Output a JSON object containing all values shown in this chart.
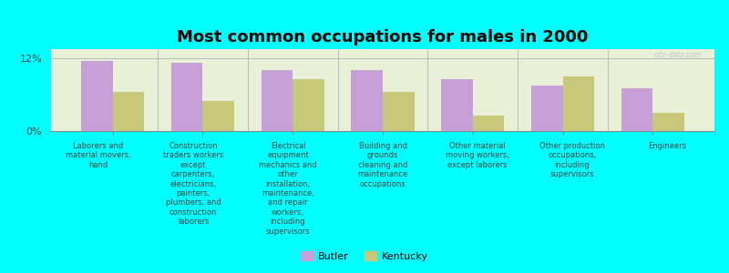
{
  "title": "Most common occupations for males in 2000",
  "background_color": "#00FFFF",
  "plot_bg_color": "#e8f0d8",
  "categories": [
    "Laborers and\nmaterial movers,\nhand",
    "Construction\ntraders workers\nexcept\ncarpenters,\nelectricians,\npainters,\nplumbers, and\nconstruction\nlaborers",
    "Electrical\nequipment\nmechanics and\nother\ninstallation,\nmaintenance,\nand repair\nworkers,\nincluding\nsupervisors",
    "Building and\ngrounds\ncleaning and\nmaintenance\noccupations",
    "Other material\nmoving workers,\nexcept laborers",
    "Other production\noccupations,\nincluding\nsupervisors",
    "Engineers"
  ],
  "butler_values": [
    11.5,
    11.2,
    10.0,
    10.0,
    8.5,
    7.5,
    7.0
  ],
  "kentucky_values": [
    6.5,
    5.0,
    8.5,
    6.5,
    2.5,
    9.0,
    3.0
  ],
  "butler_color": "#c8a0d8",
  "kentucky_color": "#c8c87a",
  "ylim": [
    0,
    13.5
  ],
  "yticks": [
    0,
    12
  ],
  "ytick_labels": [
    "0%",
    "12%"
  ],
  "legend_labels": [
    "Butler",
    "Kentucky"
  ],
  "bar_width": 0.35,
  "title_fontsize": 13,
  "watermark": "city-data.com"
}
